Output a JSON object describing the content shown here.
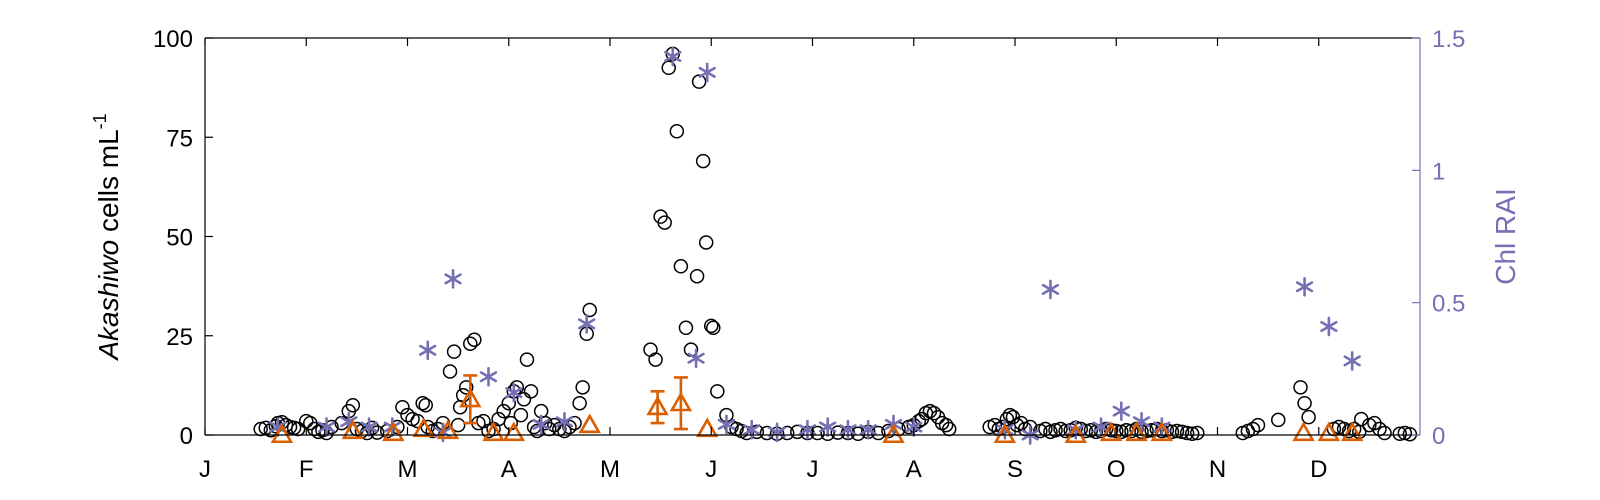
{
  "chart_data": {
    "type": "scatter",
    "title": "",
    "ylabel_parts": [
      "Akashiwo",
      " cells mL",
      "-1"
    ],
    "y2label": "Chl RAI",
    "colors": {
      "axis": "#000000",
      "right_axis": "#7570b3",
      "series_triangle": "#d95f02"
    },
    "xlim": [
      0,
      12
    ],
    "ylim": [
      0,
      100
    ],
    "y2lim": [
      0,
      1.5
    ],
    "x_ticks": [
      0,
      1,
      2,
      3,
      4,
      5,
      6,
      7,
      8,
      9,
      10,
      11
    ],
    "x_tick_labels": [
      "J",
      "F",
      "M",
      "A",
      "M",
      "J",
      "J",
      "A",
      "S",
      "O",
      "N",
      "D"
    ],
    "y_ticks": [
      0,
      25,
      50,
      75,
      100
    ],
    "y_tick_labels": [
      "0",
      "25",
      "50",
      "75",
      "100"
    ],
    "y2_ticks": [
      0,
      0.5,
      1,
      1.5
    ],
    "y2_tick_labels": [
      "0",
      "0.5",
      "1",
      "1.5"
    ],
    "series": [
      {
        "marker": "circle",
        "axis": "left",
        "points": [
          [
            0.55,
            1.5
          ],
          [
            0.6,
            1.8
          ],
          [
            0.65,
            1.2
          ],
          [
            0.7,
            2.2
          ],
          [
            0.72,
            3
          ],
          [
            0.76,
            3.2
          ],
          [
            0.8,
            2.5
          ],
          [
            0.84,
            2
          ],
          [
            0.88,
            1.8
          ],
          [
            0.92,
            1.5
          ],
          [
            1.0,
            3.5
          ],
          [
            1.04,
            3
          ],
          [
            1.08,
            1.5
          ],
          [
            1.12,
            0.8
          ],
          [
            1.16,
            1.2
          ],
          [
            1.2,
            0.5
          ],
          [
            1.25,
            2
          ],
          [
            1.35,
            3
          ],
          [
            1.42,
            6
          ],
          [
            1.46,
            7.5
          ],
          [
            1.5,
            1.5
          ],
          [
            1.55,
            1
          ],
          [
            1.6,
            0.5
          ],
          [
            1.65,
            1.8
          ],
          [
            1.7,
            0.6
          ],
          [
            1.8,
            1
          ],
          [
            1.9,
            2
          ],
          [
            1.95,
            7
          ],
          [
            2.0,
            5
          ],
          [
            2.05,
            4
          ],
          [
            2.1,
            3.5
          ],
          [
            2.15,
            8
          ],
          [
            2.18,
            7.5
          ],
          [
            2.2,
            2
          ],
          [
            2.25,
            1
          ],
          [
            2.3,
            1.5
          ],
          [
            2.35,
            3
          ],
          [
            2.42,
            16
          ],
          [
            2.46,
            21
          ],
          [
            2.5,
            2.5
          ],
          [
            2.52,
            7
          ],
          [
            2.55,
            10
          ],
          [
            2.58,
            12
          ],
          [
            2.62,
            23
          ],
          [
            2.66,
            24
          ],
          [
            2.7,
            3
          ],
          [
            2.75,
            3.5
          ],
          [
            2.8,
            1
          ],
          [
            2.85,
            1.5
          ],
          [
            2.9,
            4
          ],
          [
            2.95,
            6
          ],
          [
            3.0,
            8
          ],
          [
            3.02,
            3
          ],
          [
            3.05,
            11
          ],
          [
            3.08,
            12
          ],
          [
            3.12,
            5
          ],
          [
            3.15,
            9
          ],
          [
            3.18,
            19
          ],
          [
            3.22,
            11
          ],
          [
            3.25,
            2
          ],
          [
            3.28,
            1
          ],
          [
            3.32,
            6
          ],
          [
            3.36,
            3
          ],
          [
            3.4,
            1.5
          ],
          [
            3.45,
            2.5
          ],
          [
            3.5,
            1.5
          ],
          [
            3.55,
            1
          ],
          [
            3.6,
            2
          ],
          [
            3.65,
            3
          ],
          [
            3.7,
            8
          ],
          [
            3.73,
            12
          ],
          [
            3.77,
            25.5
          ],
          [
            3.8,
            31.5
          ],
          [
            4.4,
            21.5
          ],
          [
            4.45,
            19
          ],
          [
            4.5,
            55
          ],
          [
            4.54,
            53.5
          ],
          [
            4.58,
            92.5
          ],
          [
            4.62,
            96
          ],
          [
            4.66,
            76.5
          ],
          [
            4.7,
            42.5
          ],
          [
            4.75,
            27
          ],
          [
            4.8,
            21.5
          ],
          [
            4.86,
            40
          ],
          [
            4.88,
            89
          ],
          [
            4.92,
            69
          ],
          [
            4.95,
            48.5
          ],
          [
            5.0,
            27.5
          ],
          [
            5.02,
            27
          ],
          [
            5.06,
            11
          ],
          [
            5.15,
            5
          ],
          [
            5.2,
            2
          ],
          [
            5.25,
            1.5
          ],
          [
            5.3,
            1
          ],
          [
            5.35,
            0.5
          ],
          [
            5.45,
            0.8
          ],
          [
            5.55,
            0.5
          ],
          [
            5.65,
            0.3
          ],
          [
            5.75,
            0.5
          ],
          [
            5.85,
            0.8
          ],
          [
            5.95,
            0.5
          ],
          [
            6.05,
            0.5
          ],
          [
            6.15,
            0.3
          ],
          [
            6.25,
            0.6
          ],
          [
            6.35,
            0.5
          ],
          [
            6.45,
            0.3
          ],
          [
            6.55,
            0.8
          ],
          [
            6.65,
            0.5
          ],
          [
            6.75,
            1
          ],
          [
            6.85,
            1.5
          ],
          [
            6.95,
            2
          ],
          [
            7.0,
            2.5
          ],
          [
            7.05,
            3.5
          ],
          [
            7.08,
            4
          ],
          [
            7.12,
            5.5
          ],
          [
            7.16,
            6
          ],
          [
            7.2,
            5.5
          ],
          [
            7.24,
            4.5
          ],
          [
            7.28,
            3
          ],
          [
            7.32,
            2.5
          ],
          [
            7.35,
            1.5
          ],
          [
            7.75,
            2
          ],
          [
            7.8,
            2.5
          ],
          [
            7.84,
            1.5
          ],
          [
            7.88,
            2
          ],
          [
            7.92,
            4
          ],
          [
            7.95,
            5
          ],
          [
            7.98,
            4.5
          ],
          [
            8.02,
            2.5
          ],
          [
            8.06,
            3
          ],
          [
            8.1,
            1.5
          ],
          [
            8.15,
            2
          ],
          [
            8.25,
            1
          ],
          [
            8.3,
            1.5
          ],
          [
            8.35,
            0.8
          ],
          [
            8.4,
            1.2
          ],
          [
            8.45,
            1.5
          ],
          [
            8.5,
            1
          ],
          [
            8.55,
            1.2
          ],
          [
            8.6,
            1.8
          ],
          [
            8.65,
            1.5
          ],
          [
            8.7,
            1
          ],
          [
            8.75,
            1.2
          ],
          [
            8.8,
            0.8
          ],
          [
            8.85,
            1
          ],
          [
            8.9,
            1.5
          ],
          [
            8.95,
            1.2
          ],
          [
            9.0,
            1
          ],
          [
            9.05,
            0.8
          ],
          [
            9.1,
            1.2
          ],
          [
            9.15,
            1
          ],
          [
            9.2,
            1.5
          ],
          [
            9.25,
            0.8
          ],
          [
            9.3,
            1
          ],
          [
            9.35,
            1.2
          ],
          [
            9.4,
            1.5
          ],
          [
            9.45,
            1
          ],
          [
            9.5,
            1.2
          ],
          [
            9.55,
            0.8
          ],
          [
            9.6,
            1
          ],
          [
            9.65,
            0.8
          ],
          [
            9.7,
            0.5
          ],
          [
            9.75,
            0.3
          ],
          [
            9.8,
            0.5
          ],
          [
            10.25,
            0.5
          ],
          [
            10.3,
            1
          ],
          [
            10.35,
            1.5
          ],
          [
            10.4,
            2.5
          ],
          [
            10.6,
            3.8
          ],
          [
            10.82,
            12
          ],
          [
            10.86,
            8
          ],
          [
            10.9,
            4.5
          ],
          [
            11.15,
            1.5
          ],
          [
            11.2,
            2
          ],
          [
            11.25,
            1.5
          ],
          [
            11.3,
            1
          ],
          [
            11.35,
            1.5
          ],
          [
            11.4,
            0.8
          ],
          [
            11.42,
            4
          ],
          [
            11.5,
            2.5
          ],
          [
            11.55,
            3
          ],
          [
            11.6,
            1.5
          ],
          [
            11.65,
            0.5
          ],
          [
            11.8,
            0.3
          ],
          [
            11.85,
            0.5
          ],
          [
            11.9,
            0.2
          ]
        ]
      },
      {
        "marker": "asterisk",
        "axis": "right",
        "points": [
          [
            0.72,
            0.03
          ],
          [
            1.2,
            0.03
          ],
          [
            1.42,
            0.05
          ],
          [
            1.62,
            0.03
          ],
          [
            1.85,
            0.03
          ],
          [
            2.2,
            0.32
          ],
          [
            2.35,
            0.01
          ],
          [
            2.45,
            0.59
          ],
          [
            2.8,
            0.22
          ],
          [
            3.05,
            0.16
          ],
          [
            3.32,
            0.04
          ],
          [
            3.55,
            0.05
          ],
          [
            3.77,
            0.42
          ],
          [
            4.62,
            1.43
          ],
          [
            4.85,
            0.29
          ],
          [
            4.96,
            1.37
          ],
          [
            5.15,
            0.04
          ],
          [
            5.4,
            0.02
          ],
          [
            5.65,
            0.01
          ],
          [
            5.95,
            0.02
          ],
          [
            6.15,
            0.03
          ],
          [
            6.35,
            0.02
          ],
          [
            6.55,
            0.02
          ],
          [
            6.8,
            0.04
          ],
          [
            7.0,
            0.03
          ],
          [
            7.9,
            0.02
          ],
          [
            8.15,
            0.0
          ],
          [
            8.35,
            0.55
          ],
          [
            8.6,
            0.02
          ],
          [
            8.85,
            0.03
          ],
          [
            9.05,
            0.09
          ],
          [
            9.25,
            0.05
          ],
          [
            9.45,
            0.03
          ],
          [
            10.86,
            0.56
          ],
          [
            11.1,
            0.41
          ],
          [
            11.33,
            0.28
          ]
        ]
      },
      {
        "marker": "triangle",
        "axis": "left",
        "points": [
          [
            0.76,
            0,
            null
          ],
          [
            1.46,
            1,
            null
          ],
          [
            1.86,
            0.5,
            null
          ],
          [
            2.16,
            1.5,
            null
          ],
          [
            2.4,
            1,
            null
          ],
          [
            2.62,
            9,
            6
          ],
          [
            2.85,
            0.5,
            null
          ],
          [
            3.05,
            0.5,
            null
          ],
          [
            3.8,
            2.5,
            null
          ],
          [
            4.47,
            7,
            4
          ],
          [
            4.7,
            8,
            6.5
          ],
          [
            4.96,
            1.5,
            null
          ],
          [
            6.8,
            0,
            null
          ],
          [
            7.9,
            0,
            null
          ],
          [
            8.6,
            0,
            null
          ],
          [
            8.95,
            0.5,
            null
          ],
          [
            9.2,
            0.5,
            null
          ],
          [
            9.45,
            0.5,
            null
          ],
          [
            10.85,
            0.5,
            null
          ],
          [
            11.1,
            0.5,
            null
          ],
          [
            11.33,
            0.5,
            null
          ]
        ]
      }
    ]
  }
}
